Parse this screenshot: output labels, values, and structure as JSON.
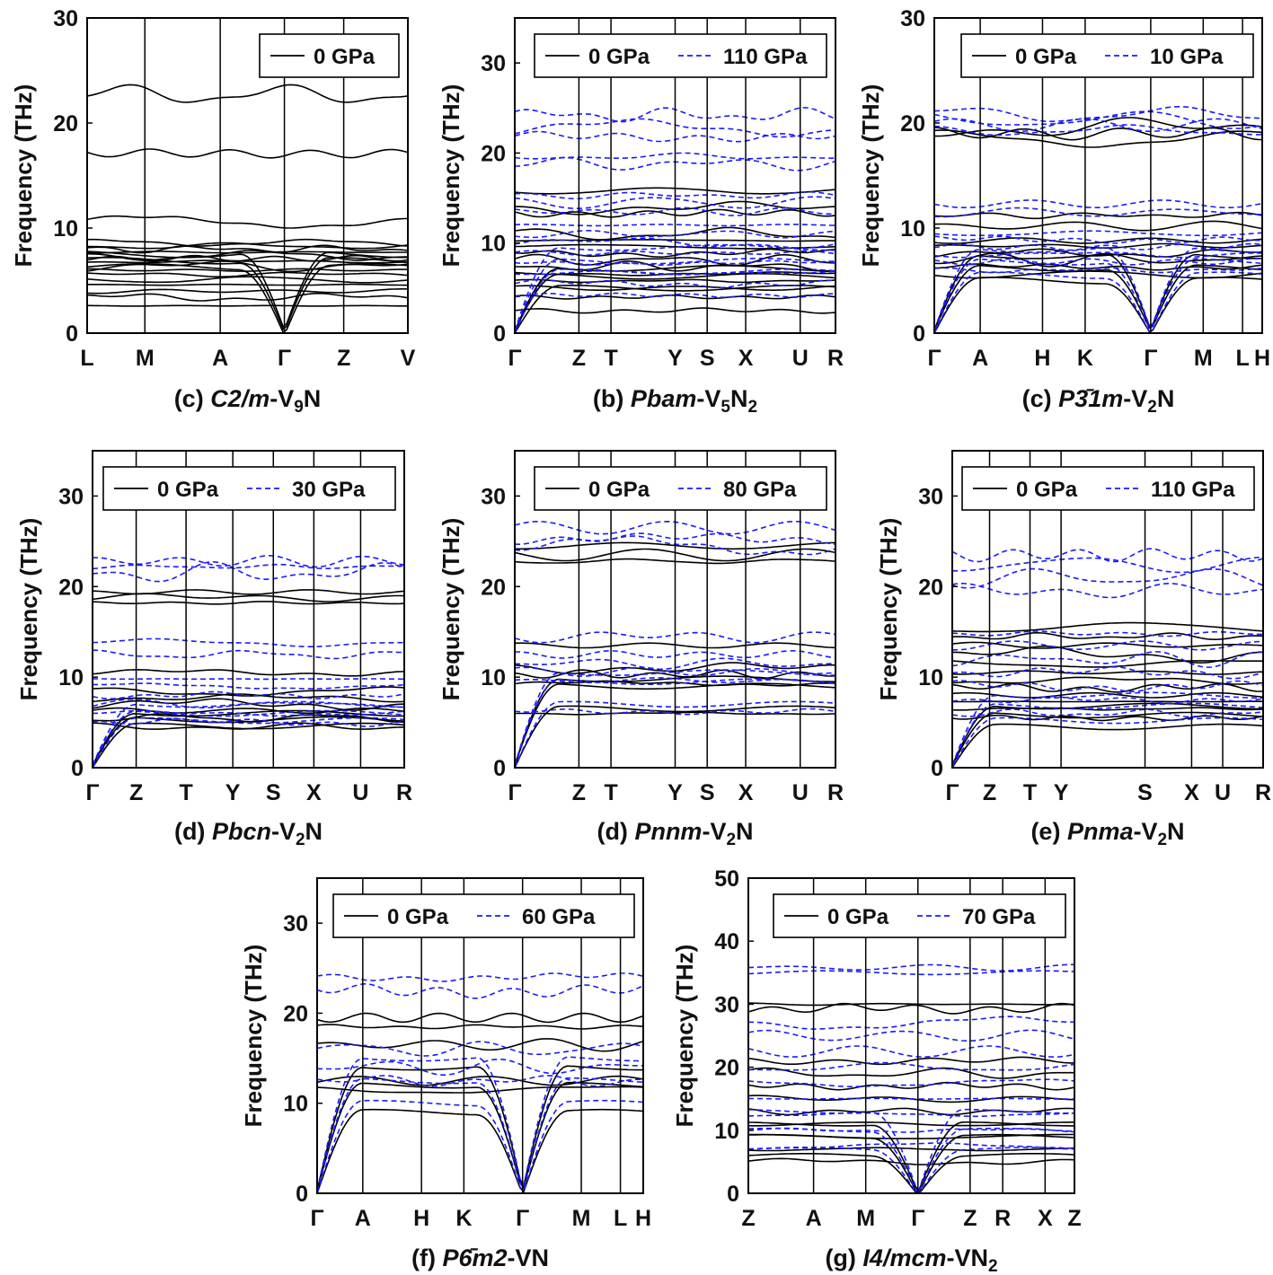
{
  "figure": {
    "ylabel": "Frequency (THz)"
  },
  "colors": {
    "zero": "#000000",
    "pressure": "#1a1aff",
    "frame": "#000000"
  },
  "chart_data": [
    {
      "type": "line",
      "caption": {
        "label": "(c) ",
        "name": "C2/m",
        "formula": "-V",
        "sub": "9",
        "tail": "N"
      },
      "ylim": [
        0,
        30
      ],
      "yticks": [
        "0",
        "10",
        "20",
        "30"
      ],
      "kpoints": [
        "L",
        "M",
        "A",
        "Γ",
        "Z",
        "V"
      ],
      "kfrac": [
        0,
        0.18,
        0.415,
        0.615,
        0.8,
        1
      ],
      "legend": {
        "zero": "0 GPa",
        "pressure": null
      },
      "series": [
        {
          "name": "0 GPa",
          "flat": [
            2.6,
            3.4,
            4.0,
            4.6,
            5.1,
            5.6,
            6.0,
            6.4,
            6.8,
            7.1,
            7.4,
            7.7,
            8.0,
            8.3,
            8.6,
            10.6,
            17.1,
            22.7
          ],
          "acoustic": [
            6.3,
            6.9,
            7.5
          ]
        }
      ]
    },
    {
      "type": "line",
      "caption": {
        "label": "(b) ",
        "name": "Pbam",
        "formula": "-V",
        "sub": "5",
        "tail": "N",
        "sub2": "2"
      },
      "ylim": [
        0,
        35
      ],
      "yticks": [
        "0",
        "10",
        "20",
        "30"
      ],
      "kpoints": [
        "Γ",
        "Z",
        "T",
        "Y",
        "S",
        "X",
        "U",
        "R"
      ],
      "kfrac": [
        0,
        0.2,
        0.3,
        0.5,
        0.6,
        0.72,
        0.89,
        1
      ],
      "legend": {
        "zero": "0 GPa",
        "pressure": "110 GPa"
      },
      "series": [
        {
          "name": "0 GPa",
          "flat": [
            2.5,
            4.0,
            5.0,
            5.8,
            6.6,
            7.4,
            8.1,
            8.9,
            9.6,
            10.3,
            11.0,
            13.3,
            13.9,
            15.8
          ],
          "acoustic": [
            5.0,
            6.3,
            7.2
          ]
        },
        {
          "name": "110 GPa",
          "flat": [
            4.2,
            5.5,
            6.7,
            7.8,
            8.9,
            10.0,
            11.0,
            12.0,
            13.5,
            14.5,
            15.3,
            18.8,
            19.6,
            21.8,
            22.8,
            24.2
          ],
          "acoustic": [
            6.8,
            8.0,
            9.5
          ]
        }
      ]
    },
    {
      "type": "line",
      "caption": {
        "label": "(c) ",
        "name": "P3̄1m",
        "formula": "-V",
        "sub": "2",
        "tail": "N"
      },
      "ylim": [
        0,
        30
      ],
      "yticks": [
        "0",
        "10",
        "20",
        "30"
      ],
      "kpoints": [
        "Γ",
        "A",
        "H",
        "K",
        "Γ",
        "M",
        "L",
        "H"
      ],
      "kfrac": [
        0,
        0.14,
        0.33,
        0.46,
        0.66,
        0.82,
        0.94,
        1
      ],
      "legend": {
        "zero": "0 GPa",
        "pressure": "10 GPa"
      },
      "series": [
        {
          "name": "0 GPa",
          "flat": [
            5.6,
            6.3,
            7.0,
            7.6,
            8.3,
            8.8,
            10.2,
            11.2,
            18.5,
            19.0,
            19.5
          ],
          "acoustic": [
            5.0,
            6.2,
            7.4
          ]
        },
        {
          "name": "10 GPa",
          "flat": [
            6.0,
            6.8,
            7.5,
            8.2,
            8.9,
            9.5,
            11.5,
            12.3,
            19.3,
            19.8,
            20.3,
            20.8
          ],
          "acoustic": [
            5.5,
            6.8,
            8.0
          ]
        }
      ]
    },
    {
      "type": "line",
      "caption": {
        "label": "(d) ",
        "name": "Pbcn",
        "formula": "-V",
        "sub": "2",
        "tail": "N"
      },
      "ylim": [
        0,
        35
      ],
      "yticks": [
        "0",
        "10",
        "20",
        "30"
      ],
      "kpoints": [
        "Γ",
        "Z",
        "T",
        "Y",
        "S",
        "X",
        "U",
        "R"
      ],
      "kfrac": [
        0,
        0.14,
        0.3,
        0.45,
        0.58,
        0.71,
        0.86,
        1
      ],
      "legend": {
        "zero": "0 GPa",
        "pressure": "30 GPa"
      },
      "series": [
        {
          "name": "0 GPa",
          "flat": [
            4.5,
            5.5,
            6.3,
            7.0,
            7.7,
            8.4,
            10.5,
            18.2,
            18.8,
            19.4
          ],
          "acoustic": [
            4.6,
            5.3,
            6.0
          ]
        },
        {
          "name": "30 GPa",
          "flat": [
            5.0,
            6.0,
            7.0,
            8.0,
            9.0,
            9.8,
            12.5,
            13.8,
            21.5,
            22.2,
            22.8
          ],
          "acoustic": [
            5.2,
            6.0,
            7.0
          ]
        }
      ]
    },
    {
      "type": "line",
      "caption": {
        "label": "(d) ",
        "name": "Pnnm",
        "formula": "-V",
        "sub": "2",
        "tail": "N"
      },
      "ylim": [
        0,
        35
      ],
      "yticks": [
        "0",
        "10",
        "20",
        "30"
      ],
      "kpoints": [
        "Γ",
        "Z",
        "T",
        "Y",
        "S",
        "X",
        "U",
        "R"
      ],
      "kfrac": [
        0,
        0.2,
        0.3,
        0.5,
        0.6,
        0.72,
        0.89,
        1
      ],
      "legend": {
        "zero": "0 GPa",
        "pressure": "80 GPa"
      },
      "series": [
        {
          "name": "0 GPa",
          "flat": [
            6.0,
            9.3,
            10.3,
            11.0,
            13.5,
            22.8,
            23.5,
            24.5
          ],
          "acoustic": [
            6.5,
            9.0,
            9.8
          ]
        },
        {
          "name": "80 GPa",
          "flat": [
            6.2,
            9.6,
            10.6,
            11.5,
            12.5,
            14.5,
            24.5,
            25.3,
            26.5
          ],
          "acoustic": [
            7.0,
            9.5,
            10.5
          ]
        }
      ]
    },
    {
      "type": "line",
      "caption": {
        "label": "(e) ",
        "name": "Pnma",
        "formula": "-V",
        "sub": "2",
        "tail": "N"
      },
      "ylim": [
        0,
        35
      ],
      "yticks": [
        "0",
        "10",
        "20",
        "30"
      ],
      "kpoints": [
        "Γ",
        "Z",
        "T",
        "Y",
        "S",
        "X",
        "U",
        "R"
      ],
      "kfrac": [
        0,
        0.12,
        0.25,
        0.35,
        0.62,
        0.77,
        0.87,
        1
      ],
      "legend": {
        "zero": "0 GPa",
        "pressure": "110 GPa"
      },
      "series": [
        {
          "name": "0 GPa",
          "flat": [
            5.5,
            6.5,
            7.3,
            8.0,
            8.8,
            9.6,
            10.5,
            11.5,
            12.5,
            13.5,
            14.5,
            15.5
          ],
          "acoustic": [
            4.5,
            5.8,
            6.8
          ]
        },
        {
          "name": "110 GPa",
          "flat": [
            6.0,
            7.5,
            9.0,
            10.5,
            12.0,
            13.5,
            14.8,
            19.5,
            21.0,
            22.5,
            23.5
          ],
          "acoustic": [
            5.2,
            6.8,
            8.0
          ]
        }
      ]
    },
    {
      "type": "line",
      "caption": {
        "label": "(f) ",
        "name": "P6̄m2",
        "formula": "-VN",
        "sub": "",
        "tail": ""
      },
      "ylim": [
        0,
        35
      ],
      "yticks": [
        "0",
        "10",
        "20",
        "30"
      ],
      "kpoints": [
        "Γ",
        "A",
        "H",
        "K",
        "Γ",
        "M",
        "L",
        "H"
      ],
      "kfrac": [
        0,
        0.14,
        0.32,
        0.45,
        0.63,
        0.81,
        0.93,
        1
      ],
      "legend": {
        "zero": "0 GPa",
        "pressure": "60 GPa"
      },
      "series": [
        {
          "name": "0 GPa",
          "flat": [
            11.5,
            12.5,
            16.5,
            18.5,
            19.5
          ],
          "acoustic": [
            9.0,
            12.0,
            14.0
          ]
        },
        {
          "name": "60 GPa",
          "flat": [
            12.5,
            14.0,
            16.0,
            22.5,
            24.0
          ],
          "acoustic": [
            10.0,
            12.5,
            15.0
          ]
        }
      ]
    },
    {
      "type": "line",
      "caption": {
        "label": "(g) ",
        "name": "I4/mcm",
        "formula": "-VN",
        "sub": "2",
        "tail": ""
      },
      "ylim": [
        0,
        50
      ],
      "yticks": [
        "0",
        "10",
        "20",
        "30",
        "40",
        "50"
      ],
      "kpoints": [
        "Z",
        "A",
        "M",
        "Γ",
        "Z",
        "R",
        "X",
        "Z"
      ],
      "kfrac": [
        0,
        0.2,
        0.36,
        0.52,
        0.68,
        0.78,
        0.91,
        1
      ],
      "legend": {
        "zero": "0 GPa",
        "pressure": "70 GPa"
      },
      "series": [
        {
          "name": "0 GPa",
          "flat": [
            5.0,
            7.0,
            9.0,
            11.0,
            13.0,
            15.0,
            17.0,
            19.0,
            21.0,
            29.3,
            30.0
          ],
          "acoustic": [
            6.0,
            9.0,
            11.0
          ]
        },
        {
          "name": "70 GPa",
          "flat": [
            7.5,
            10.0,
            12.5,
            15.0,
            17.5,
            20.0,
            22.5,
            25.0,
            27.0,
            35.0,
            35.8
          ],
          "acoustic": [
            7.0,
            10.0,
            13.0
          ]
        }
      ]
    }
  ]
}
